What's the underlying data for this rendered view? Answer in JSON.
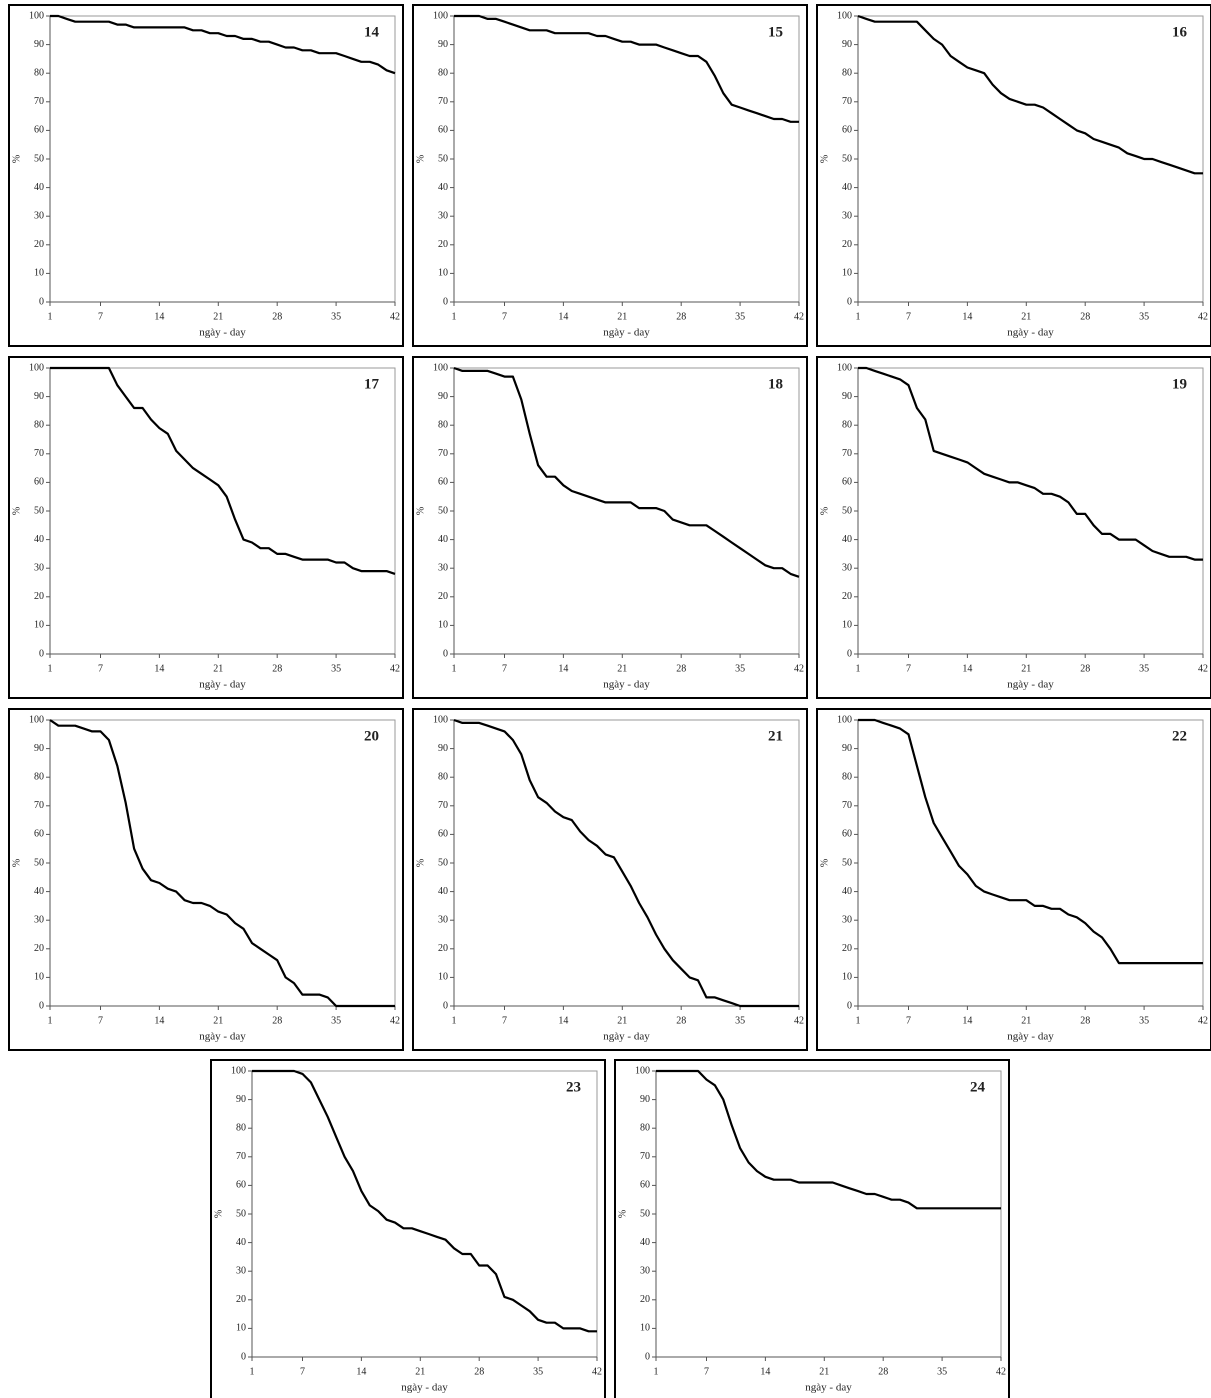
{
  "chart_data": [
    {
      "type": "line",
      "title": "14",
      "xlabel": "ngày - day",
      "ylabel": "%",
      "color": "#000000",
      "xlim": [
        1,
        42
      ],
      "ylim": [
        0,
        100
      ],
      "xticks": [
        1,
        7,
        14,
        21,
        28,
        35,
        42
      ],
      "yticks": [
        0,
        10,
        20,
        30,
        40,
        50,
        60,
        70,
        80,
        90,
        100
      ],
      "x": [
        1,
        2,
        3,
        4,
        5,
        6,
        7,
        8,
        9,
        10,
        11,
        12,
        13,
        14,
        15,
        16,
        17,
        18,
        19,
        20,
        21,
        22,
        23,
        24,
        25,
        26,
        27,
        28,
        29,
        30,
        31,
        32,
        33,
        34,
        35,
        36,
        37,
        38,
        39,
        40,
        41,
        42
      ],
      "values": [
        100,
        100,
        99,
        98,
        98,
        98,
        98,
        98,
        97,
        97,
        96,
        96,
        96,
        96,
        96,
        96,
        96,
        95,
        95,
        94,
        94,
        93,
        93,
        92,
        92,
        91,
        91,
        90,
        89,
        89,
        88,
        88,
        87,
        87,
        87,
        86,
        85,
        84,
        84,
        83,
        81,
        80
      ]
    },
    {
      "type": "line",
      "title": "15",
      "xlabel": "ngày - day",
      "ylabel": "%",
      "color": "#000000",
      "xlim": [
        1,
        42
      ],
      "ylim": [
        0,
        100
      ],
      "xticks": [
        1,
        7,
        14,
        21,
        28,
        35,
        42
      ],
      "yticks": [
        0,
        10,
        20,
        30,
        40,
        50,
        60,
        70,
        80,
        90,
        100
      ],
      "x": [
        1,
        2,
        3,
        4,
        5,
        6,
        7,
        8,
        9,
        10,
        11,
        12,
        13,
        14,
        15,
        16,
        17,
        18,
        19,
        20,
        21,
        22,
        23,
        24,
        25,
        26,
        27,
        28,
        29,
        30,
        31,
        32,
        33,
        34,
        35,
        36,
        37,
        38,
        39,
        40,
        41,
        42
      ],
      "values": [
        100,
        100,
        100,
        100,
        99,
        99,
        98,
        97,
        96,
        95,
        95,
        95,
        94,
        94,
        94,
        94,
        94,
        93,
        93,
        92,
        91,
        91,
        90,
        90,
        90,
        89,
        88,
        87,
        86,
        86,
        84,
        79,
        73,
        69,
        68,
        67,
        66,
        65,
        64,
        64,
        63,
        63
      ]
    },
    {
      "type": "line",
      "title": "16",
      "xlabel": "ngày - day",
      "ylabel": "%",
      "color": "#000000",
      "xlim": [
        1,
        42
      ],
      "ylim": [
        0,
        100
      ],
      "xticks": [
        1,
        7,
        14,
        21,
        28,
        35,
        42
      ],
      "yticks": [
        0,
        10,
        20,
        30,
        40,
        50,
        60,
        70,
        80,
        90,
        100
      ],
      "x": [
        1,
        2,
        3,
        4,
        5,
        6,
        7,
        8,
        9,
        10,
        11,
        12,
        13,
        14,
        15,
        16,
        17,
        18,
        19,
        20,
        21,
        22,
        23,
        24,
        25,
        26,
        27,
        28,
        29,
        30,
        31,
        32,
        33,
        34,
        35,
        36,
        37,
        38,
        39,
        40,
        41,
        42
      ],
      "values": [
        100,
        99,
        98,
        98,
        98,
        98,
        98,
        98,
        95,
        92,
        90,
        86,
        84,
        82,
        81,
        80,
        76,
        73,
        71,
        70,
        69,
        69,
        68,
        66,
        64,
        62,
        60,
        59,
        57,
        56,
        55,
        54,
        52,
        51,
        50,
        50,
        49,
        48,
        47,
        46,
        45,
        45
      ]
    },
    {
      "type": "line",
      "title": "17",
      "xlabel": "ngày - day",
      "ylabel": "%",
      "color": "#000000",
      "xlim": [
        1,
        42
      ],
      "ylim": [
        0,
        100
      ],
      "xticks": [
        1,
        7,
        14,
        21,
        28,
        35,
        42
      ],
      "yticks": [
        0,
        10,
        20,
        30,
        40,
        50,
        60,
        70,
        80,
        90,
        100
      ],
      "x": [
        1,
        2,
        3,
        4,
        5,
        6,
        7,
        8,
        9,
        10,
        11,
        12,
        13,
        14,
        15,
        16,
        17,
        18,
        19,
        20,
        21,
        22,
        23,
        24,
        25,
        26,
        27,
        28,
        29,
        30,
        31,
        32,
        33,
        34,
        35,
        36,
        37,
        38,
        39,
        40,
        41,
        42
      ],
      "values": [
        100,
        100,
        100,
        100,
        100,
        100,
        100,
        100,
        94,
        90,
        86,
        86,
        82,
        79,
        77,
        71,
        68,
        65,
        63,
        61,
        59,
        55,
        47,
        40,
        39,
        37,
        37,
        35,
        35,
        34,
        33,
        33,
        33,
        33,
        32,
        32,
        30,
        29,
        29,
        29,
        29,
        28
      ]
    },
    {
      "type": "line",
      "title": "18",
      "xlabel": "ngày - day",
      "ylabel": "%",
      "color": "#000000",
      "xlim": [
        1,
        42
      ],
      "ylim": [
        0,
        100
      ],
      "xticks": [
        1,
        7,
        14,
        21,
        28,
        35,
        42
      ],
      "yticks": [
        0,
        10,
        20,
        30,
        40,
        50,
        60,
        70,
        80,
        90,
        100
      ],
      "x": [
        1,
        2,
        3,
        4,
        5,
        6,
        7,
        8,
        9,
        10,
        11,
        12,
        13,
        14,
        15,
        16,
        17,
        18,
        19,
        20,
        21,
        22,
        23,
        24,
        25,
        26,
        27,
        28,
        29,
        30,
        31,
        32,
        33,
        34,
        35,
        36,
        37,
        38,
        39,
        40,
        41,
        42
      ],
      "values": [
        100,
        99,
        99,
        99,
        99,
        98,
        97,
        97,
        89,
        77,
        66,
        62,
        62,
        59,
        57,
        56,
        55,
        54,
        53,
        53,
        53,
        53,
        51,
        51,
        51,
        50,
        47,
        46,
        45,
        45,
        45,
        43,
        41,
        39,
        37,
        35,
        33,
        31,
        30,
        30,
        28,
        27
      ]
    },
    {
      "type": "line",
      "title": "19",
      "xlabel": "ngày - day",
      "ylabel": "%",
      "color": "#000000",
      "xlim": [
        1,
        42
      ],
      "ylim": [
        0,
        100
      ],
      "xticks": [
        1,
        7,
        14,
        21,
        28,
        35,
        42
      ],
      "yticks": [
        0,
        10,
        20,
        30,
        40,
        50,
        60,
        70,
        80,
        90,
        100
      ],
      "x": [
        1,
        2,
        3,
        4,
        5,
        6,
        7,
        8,
        9,
        10,
        11,
        12,
        13,
        14,
        15,
        16,
        17,
        18,
        19,
        20,
        21,
        22,
        23,
        24,
        25,
        26,
        27,
        28,
        29,
        30,
        31,
        32,
        33,
        34,
        35,
        36,
        37,
        38,
        39,
        40,
        41,
        42
      ],
      "values": [
        100,
        100,
        99,
        98,
        97,
        96,
        94,
        86,
        82,
        71,
        70,
        69,
        68,
        67,
        65,
        63,
        62,
        61,
        60,
        60,
        59,
        58,
        56,
        56,
        55,
        53,
        49,
        49,
        45,
        42,
        42,
        40,
        40,
        40,
        38,
        36,
        35,
        34,
        34,
        34,
        33,
        33
      ]
    },
    {
      "type": "line",
      "title": "20",
      "xlabel": "ngày - day",
      "ylabel": "%",
      "color": "#000000",
      "xlim": [
        1,
        42
      ],
      "ylim": [
        0,
        100
      ],
      "xticks": [
        1,
        7,
        14,
        21,
        28,
        35,
        42
      ],
      "yticks": [
        0,
        10,
        20,
        30,
        40,
        50,
        60,
        70,
        80,
        90,
        100
      ],
      "x": [
        1,
        2,
        3,
        4,
        5,
        6,
        7,
        8,
        9,
        10,
        11,
        12,
        13,
        14,
        15,
        16,
        17,
        18,
        19,
        20,
        21,
        22,
        23,
        24,
        25,
        26,
        27,
        28,
        29,
        30,
        31,
        32,
        33,
        34,
        35,
        36,
        37,
        38,
        39,
        40,
        41,
        42
      ],
      "values": [
        100,
        98,
        98,
        98,
        97,
        96,
        96,
        93,
        84,
        71,
        55,
        48,
        44,
        43,
        41,
        40,
        37,
        36,
        36,
        35,
        33,
        32,
        29,
        27,
        22,
        20,
        18,
        16,
        10,
        8,
        4,
        4,
        4,
        3,
        0,
        0,
        0,
        0,
        0,
        0,
        0,
        0
      ]
    },
    {
      "type": "line",
      "title": "21",
      "xlabel": "ngày - day",
      "ylabel": "%",
      "color": "#000000",
      "xlim": [
        1,
        42
      ],
      "ylim": [
        0,
        100
      ],
      "xticks": [
        1,
        7,
        14,
        21,
        28,
        35,
        42
      ],
      "yticks": [
        0,
        10,
        20,
        30,
        40,
        50,
        60,
        70,
        80,
        90,
        100
      ],
      "x": [
        1,
        2,
        3,
        4,
        5,
        6,
        7,
        8,
        9,
        10,
        11,
        12,
        13,
        14,
        15,
        16,
        17,
        18,
        19,
        20,
        21,
        22,
        23,
        24,
        25,
        26,
        27,
        28,
        29,
        30,
        31,
        32,
        33,
        34,
        35,
        36,
        37,
        38,
        39,
        40,
        41,
        42
      ],
      "values": [
        100,
        99,
        99,
        99,
        98,
        97,
        96,
        93,
        88,
        79,
        73,
        71,
        68,
        66,
        65,
        61,
        58,
        56,
        53,
        52,
        47,
        42,
        36,
        31,
        25,
        20,
        16,
        13,
        10,
        9,
        3,
        3,
        2,
        1,
        0,
        0,
        0,
        0,
        0,
        0,
        0,
        0
      ]
    },
    {
      "type": "line",
      "title": "22",
      "xlabel": "ngày - day",
      "ylabel": "%",
      "color": "#000000",
      "xlim": [
        1,
        42
      ],
      "ylim": [
        0,
        100
      ],
      "xticks": [
        1,
        7,
        14,
        21,
        28,
        35,
        42
      ],
      "yticks": [
        0,
        10,
        20,
        30,
        40,
        50,
        60,
        70,
        80,
        90,
        100
      ],
      "x": [
        1,
        2,
        3,
        4,
        5,
        6,
        7,
        8,
        9,
        10,
        11,
        12,
        13,
        14,
        15,
        16,
        17,
        18,
        19,
        20,
        21,
        22,
        23,
        24,
        25,
        26,
        27,
        28,
        29,
        30,
        31,
        32,
        33,
        34,
        35,
        36,
        37,
        38,
        39,
        40,
        41,
        42
      ],
      "values": [
        100,
        100,
        100,
        99,
        98,
        97,
        95,
        84,
        73,
        64,
        59,
        54,
        49,
        46,
        42,
        40,
        39,
        38,
        37,
        37,
        37,
        35,
        35,
        34,
        34,
        32,
        31,
        29,
        26,
        24,
        20,
        15,
        15,
        15,
        15,
        15,
        15,
        15,
        15,
        15,
        15,
        15
      ]
    },
    {
      "type": "line",
      "title": "23",
      "xlabel": "ngày - day",
      "ylabel": "%",
      "color": "#000000",
      "xlim": [
        1,
        42
      ],
      "ylim": [
        0,
        100
      ],
      "xticks": [
        1,
        7,
        14,
        21,
        28,
        35,
        42
      ],
      "yticks": [
        0,
        10,
        20,
        30,
        40,
        50,
        60,
        70,
        80,
        90,
        100
      ],
      "x": [
        1,
        2,
        3,
        4,
        5,
        6,
        7,
        8,
        9,
        10,
        11,
        12,
        13,
        14,
        15,
        16,
        17,
        18,
        19,
        20,
        21,
        22,
        23,
        24,
        25,
        26,
        27,
        28,
        29,
        30,
        31,
        32,
        33,
        34,
        35,
        36,
        37,
        38,
        39,
        40,
        41,
        42
      ],
      "values": [
        100,
        100,
        100,
        100,
        100,
        100,
        99,
        96,
        90,
        84,
        77,
        70,
        65,
        58,
        53,
        51,
        48,
        47,
        45,
        45,
        44,
        43,
        42,
        41,
        38,
        36,
        36,
        32,
        32,
        29,
        21,
        20,
        18,
        16,
        13,
        12,
        12,
        10,
        10,
        10,
        9,
        9
      ]
    },
    {
      "type": "line",
      "title": "24",
      "xlabel": "ngày - day",
      "ylabel": "%",
      "color": "#000000",
      "xlim": [
        1,
        42
      ],
      "ylim": [
        0,
        100
      ],
      "xticks": [
        1,
        7,
        14,
        21,
        28,
        35,
        42
      ],
      "yticks": [
        0,
        10,
        20,
        30,
        40,
        50,
        60,
        70,
        80,
        90,
        100
      ],
      "x": [
        1,
        2,
        3,
        4,
        5,
        6,
        7,
        8,
        9,
        10,
        11,
        12,
        13,
        14,
        15,
        16,
        17,
        18,
        19,
        20,
        21,
        22,
        23,
        24,
        25,
        26,
        27,
        28,
        29,
        30,
        31,
        32,
        33,
        34,
        35,
        36,
        37,
        38,
        39,
        40,
        41,
        42
      ],
      "values": [
        100,
        100,
        100,
        100,
        100,
        100,
        97,
        95,
        90,
        81,
        73,
        68,
        65,
        63,
        62,
        62,
        62,
        61,
        61,
        61,
        61,
        61,
        60,
        59,
        58,
        57,
        57,
        56,
        55,
        55,
        54,
        52,
        52,
        52,
        52,
        52,
        52,
        52,
        52,
        52,
        52,
        52
      ]
    }
  ]
}
